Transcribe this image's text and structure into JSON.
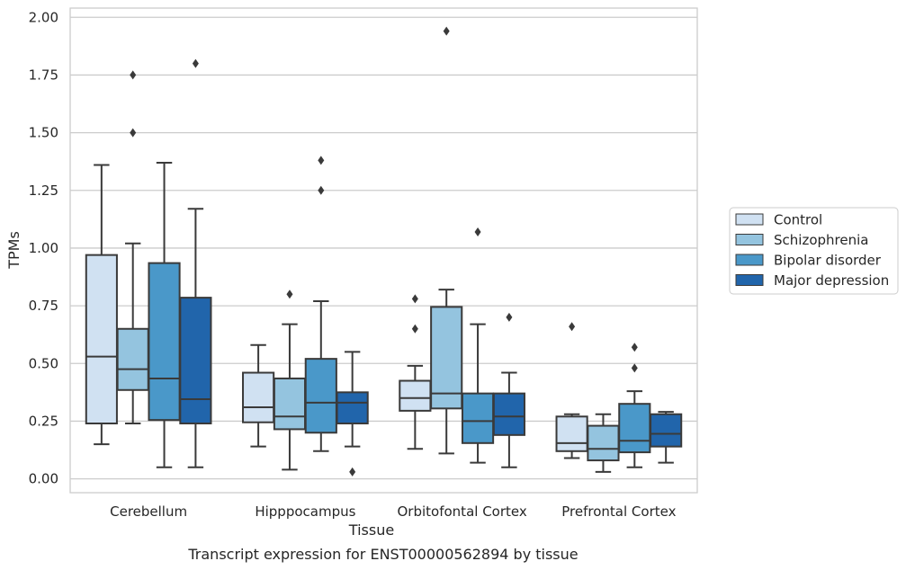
{
  "chart_data": {
    "type": "boxplot",
    "title": "",
    "caption": "Transcript expression for ENST00000562894 by tissue",
    "xlabel": "Tissue",
    "ylabel": "TPMs",
    "ylim": [
      -0.06,
      2.04
    ],
    "yticks": [
      0.0,
      0.25,
      0.5,
      0.75,
      1.0,
      1.25,
      1.5,
      1.75,
      2.0
    ],
    "ytick_labels": [
      "0.00",
      "0.25",
      "0.50",
      "0.75",
      "1.00",
      "1.25",
      "1.50",
      "1.75",
      "2.00"
    ],
    "grid": "horizontal",
    "legend_position": "right",
    "categories": [
      "Cerebellum",
      "Hipppocampus",
      "Orbitofontal Cortex",
      "Prefrontal Cortex"
    ],
    "series": [
      {
        "name": "Control",
        "color": "#d0e1f2",
        "boxes": [
          {
            "whisker_low": 0.15,
            "q1": 0.24,
            "median": 0.53,
            "q3": 0.97,
            "whisker_high": 1.36,
            "outliers": []
          },
          {
            "whisker_low": 0.14,
            "q1": 0.245,
            "median": 0.31,
            "q3": 0.46,
            "whisker_high": 0.58,
            "outliers": []
          },
          {
            "whisker_low": 0.13,
            "q1": 0.295,
            "median": 0.35,
            "q3": 0.425,
            "whisker_high": 0.49,
            "outliers": [
              0.65,
              0.78
            ]
          },
          {
            "whisker_low": 0.09,
            "q1": 0.12,
            "median": 0.155,
            "q3": 0.27,
            "whisker_high": 0.28,
            "outliers": [
              0.66
            ]
          }
        ]
      },
      {
        "name": "Schizophrenia",
        "color": "#94c4df",
        "boxes": [
          {
            "whisker_low": 0.24,
            "q1": 0.385,
            "median": 0.475,
            "q3": 0.65,
            "whisker_high": 1.02,
            "outliers": [
              1.5,
              1.75
            ]
          },
          {
            "whisker_low": 0.04,
            "q1": 0.215,
            "median": 0.27,
            "q3": 0.435,
            "whisker_high": 0.67,
            "outliers": [
              0.8
            ]
          },
          {
            "whisker_low": 0.11,
            "q1": 0.305,
            "median": 0.37,
            "q3": 0.745,
            "whisker_high": 0.82,
            "outliers": [
              1.94
            ]
          },
          {
            "whisker_low": 0.03,
            "q1": 0.08,
            "median": 0.13,
            "q3": 0.23,
            "whisker_high": 0.28,
            "outliers": []
          }
        ]
      },
      {
        "name": "Bipolar disorder",
        "color": "#4a98c9",
        "boxes": [
          {
            "whisker_low": 0.05,
            "q1": 0.255,
            "median": 0.435,
            "q3": 0.935,
            "whisker_high": 1.37,
            "outliers": []
          },
          {
            "whisker_low": 0.12,
            "q1": 0.2,
            "median": 0.33,
            "q3": 0.52,
            "whisker_high": 0.77,
            "outliers": [
              1.25,
              1.38
            ]
          },
          {
            "whisker_low": 0.07,
            "q1": 0.155,
            "median": 0.25,
            "q3": 0.37,
            "whisker_high": 0.67,
            "outliers": [
              1.07
            ]
          },
          {
            "whisker_low": 0.05,
            "q1": 0.115,
            "median": 0.165,
            "q3": 0.325,
            "whisker_high": 0.38,
            "outliers": [
              0.48,
              0.57
            ]
          }
        ]
      },
      {
        "name": "Major depression",
        "color": "#2165ab",
        "boxes": [
          {
            "whisker_low": 0.05,
            "q1": 0.24,
            "median": 0.345,
            "q3": 0.785,
            "whisker_high": 1.17,
            "outliers": [
              1.8
            ]
          },
          {
            "whisker_low": 0.14,
            "q1": 0.24,
            "median": 0.33,
            "q3": 0.375,
            "whisker_high": 0.55,
            "outliers": [
              0.03
            ]
          },
          {
            "whisker_low": 0.05,
            "q1": 0.19,
            "median": 0.27,
            "q3": 0.37,
            "whisker_high": 0.46,
            "outliers": [
              0.7
            ]
          },
          {
            "whisker_low": 0.07,
            "q1": 0.14,
            "median": 0.195,
            "q3": 0.28,
            "whisker_high": 0.29,
            "outliers": []
          }
        ]
      }
    ]
  }
}
